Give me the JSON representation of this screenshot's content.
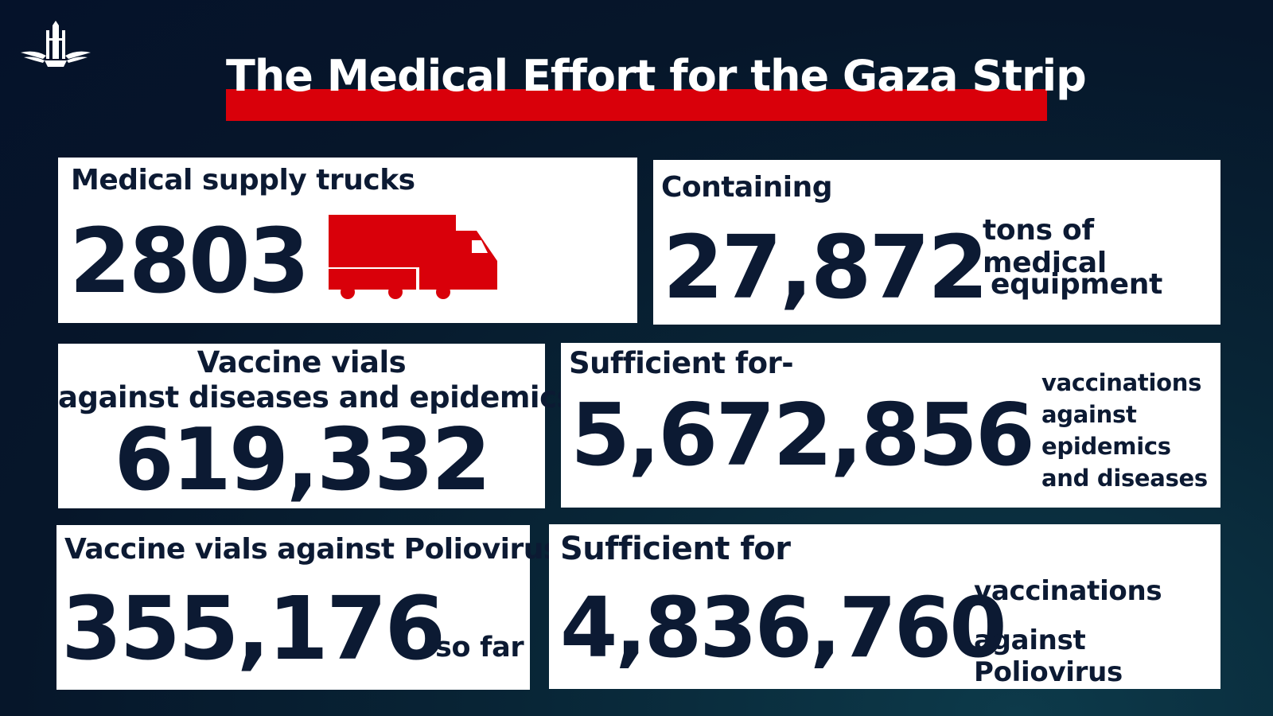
{
  "header": {
    "title": "The Medical Effort for the Gaza Strip"
  },
  "colors": {
    "accent": "#d9000a",
    "text": "#0c1a33",
    "card": "#ffffff"
  },
  "icons": {
    "logo": "idf-emblem-icon",
    "truck": "truck-icon"
  },
  "cards": {
    "trucks": {
      "label": "Medical supply trucks",
      "value": "2803"
    },
    "tons": {
      "label": "Containing",
      "value": "27,872",
      "unit_line1": "tons of medical",
      "unit_line2": "equipment"
    },
    "vials": {
      "label_line1": "Vaccine vials",
      "label_line2": "against diseases and epidemics",
      "value": "619,332"
    },
    "vaccinations": {
      "label": "Sufficient for-",
      "value": "5,672,856",
      "unit_lines": [
        "vaccinations",
        "against",
        "epidemics",
        "and diseases"
      ]
    },
    "polio_vials": {
      "label": "Vaccine vials against Poliovirus",
      "value": "355,176",
      "suffix": "so far"
    },
    "polio_vaccinations": {
      "label": "Sufficient for",
      "value": "4,836,760",
      "unit_line1": "vaccinations",
      "unit_line2": "against Poliovirus"
    }
  }
}
